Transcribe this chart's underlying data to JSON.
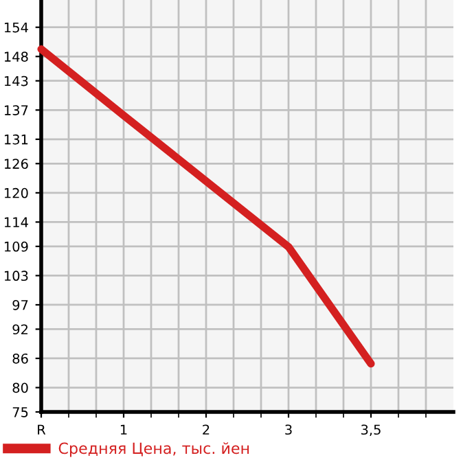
{
  "chart_data": {
    "type": "line",
    "categories": [
      "R",
      "1",
      "2",
      "3",
      "3,5"
    ],
    "series": [
      {
        "name": "Средняя Цена, тыс. йен",
        "color": "#d42020",
        "values": [
          149.5,
          135.9,
          122.4,
          108.9,
          84.9
        ]
      }
    ],
    "ylim": [
      75,
      159.6
    ],
    "yticks": [
      75,
      80,
      86,
      92,
      97,
      103,
      109,
      114,
      120,
      126,
      131,
      137,
      143,
      148,
      154
    ],
    "grid": true,
    "legend": "bottom left",
    "marker": "none",
    "line_style": "solid"
  }
}
